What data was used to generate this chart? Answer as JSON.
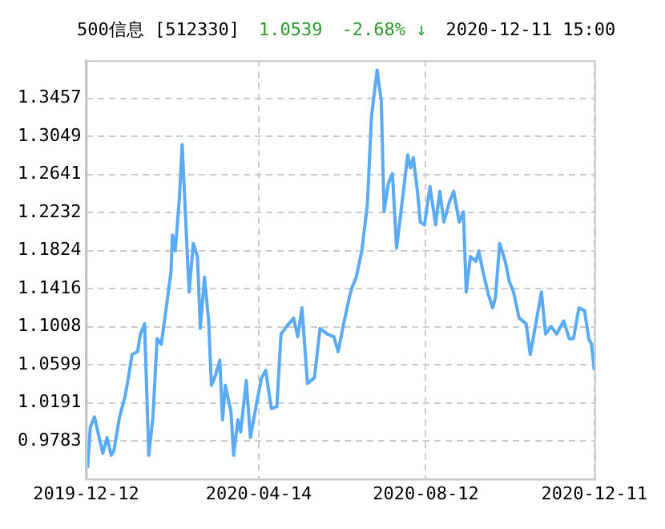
{
  "chart_data": {
    "type": "line",
    "title": "500信息 [512330]",
    "annotations": [
      "1.0539",
      "-2.68% ↓",
      "2020-12-11 15:00"
    ],
    "x": [
      "2019-12-13",
      "2019-12-15",
      "2019-12-18",
      "2019-12-24",
      "2019-12-27",
      "2019-12-30",
      "2020-01-01",
      "2020-01-05",
      "2020-01-09",
      "2020-01-11",
      "2020-01-14",
      "2020-01-18",
      "2020-01-20",
      "2020-01-23",
      "2020-01-26",
      "2020-01-29",
      "2020-02-01",
      "2020-02-04",
      "2020-02-07",
      "2020-02-11",
      "2020-02-12",
      "2020-02-14",
      "2020-02-17",
      "2020-02-19",
      "2020-02-21",
      "2020-02-24",
      "2020-02-27",
      "2020-03-01",
      "2020-03-03",
      "2020-03-06",
      "2020-03-09",
      "2020-03-11",
      "2020-03-14",
      "2020-03-17",
      "2020-03-19",
      "2020-03-21",
      "2020-03-25",
      "2020-03-27",
      "2020-03-30",
      "2020-04-01",
      "2020-04-05",
      "2020-04-08",
      "2020-04-12",
      "2020-04-16",
      "2020-04-19",
      "2020-04-23",
      "2020-04-27",
      "2020-04-30",
      "2020-05-04",
      "2020-05-09",
      "2020-05-12",
      "2020-05-15",
      "2020-05-19",
      "2020-05-24",
      "2020-05-28",
      "2020-06-02",
      "2020-06-07",
      "2020-06-10",
      "2020-06-14",
      "2020-06-18",
      "2020-06-20",
      "2020-06-23",
      "2020-06-27",
      "2020-07-01",
      "2020-07-04",
      "2020-07-08",
      "2020-07-11",
      "2020-07-13",
      "2020-07-16",
      "2020-07-19",
      "2020-07-22",
      "2020-07-26",
      "2020-07-30",
      "2020-08-01",
      "2020-08-03",
      "2020-08-06",
      "2020-08-08",
      "2020-08-11",
      "2020-08-15",
      "2020-08-19",
      "2020-08-22",
      "2020-08-25",
      "2020-08-29",
      "2020-09-01",
      "2020-09-05",
      "2020-09-08",
      "2020-09-10",
      "2020-09-13",
      "2020-09-17",
      "2020-09-19",
      "2020-09-22",
      "2020-09-26",
      "2020-09-29",
      "2020-10-01",
      "2020-10-04",
      "2020-10-08",
      "2020-10-11",
      "2020-10-14",
      "2020-10-18",
      "2020-10-23",
      "2020-10-26",
      "2020-10-30",
      "2020-11-03",
      "2020-11-06",
      "2020-11-10",
      "2020-11-14",
      "2020-11-19",
      "2020-11-23",
      "2020-11-26",
      "2020-11-30",
      "2020-12-04",
      "2020-12-07",
      "2020-12-09",
      "2020-12-11"
    ],
    "series": [
      {
        "color": "#5aaaf5",
        "values": [
          0.949,
          0.993,
          1.004,
          0.965,
          0.982,
          0.963,
          0.968,
          1.004,
          1.026,
          1.043,
          1.071,
          1.074,
          1.093,
          1.104,
          0.963,
          1.004,
          1.088,
          1.082,
          1.115,
          1.16,
          1.199,
          1.182,
          1.238,
          1.296,
          1.232,
          1.138,
          1.19,
          1.176,
          1.099,
          1.154,
          1.107,
          1.038,
          1.049,
          1.065,
          1.001,
          1.038,
          1.01,
          0.963,
          1.001,
          0.988,
          1.043,
          0.982,
          1.015,
          1.046,
          1.054,
          1.013,
          1.015,
          1.093,
          1.101,
          1.11,
          1.09,
          1.121,
          1.04,
          1.046,
          1.099,
          1.093,
          1.09,
          1.074,
          1.104,
          1.132,
          1.143,
          1.154,
          1.182,
          1.232,
          1.327,
          1.376,
          1.343,
          1.224,
          1.254,
          1.265,
          1.185,
          1.235,
          1.285,
          1.271,
          1.282,
          1.246,
          1.213,
          1.21,
          1.251,
          1.21,
          1.246,
          1.213,
          1.235,
          1.246,
          1.213,
          1.224,
          1.138,
          1.176,
          1.171,
          1.182,
          1.16,
          1.135,
          1.121,
          1.132,
          1.19,
          1.171,
          1.149,
          1.138,
          1.11,
          1.104,
          1.071,
          1.104,
          1.138,
          1.093,
          1.101,
          1.093,
          1.107,
          1.088,
          1.088,
          1.121,
          1.118,
          1.088,
          1.082,
          1.054
        ]
      }
    ],
    "xlim": [
      "2019-12-12",
      "2020-12-11"
    ],
    "xticks": [
      "2019-12-12",
      "2020-04-14",
      "2020-08-12",
      "2020-12-11"
    ],
    "ylim": [
      0.9375,
      1.3865
    ],
    "yticks": [
      0.9783,
      1.0191,
      1.0599,
      1.1008,
      1.1416,
      1.1824,
      1.2232,
      1.2641,
      1.3049,
      1.3457
    ],
    "grid": true,
    "legend": false,
    "marker": "none",
    "line_style": "solid"
  }
}
